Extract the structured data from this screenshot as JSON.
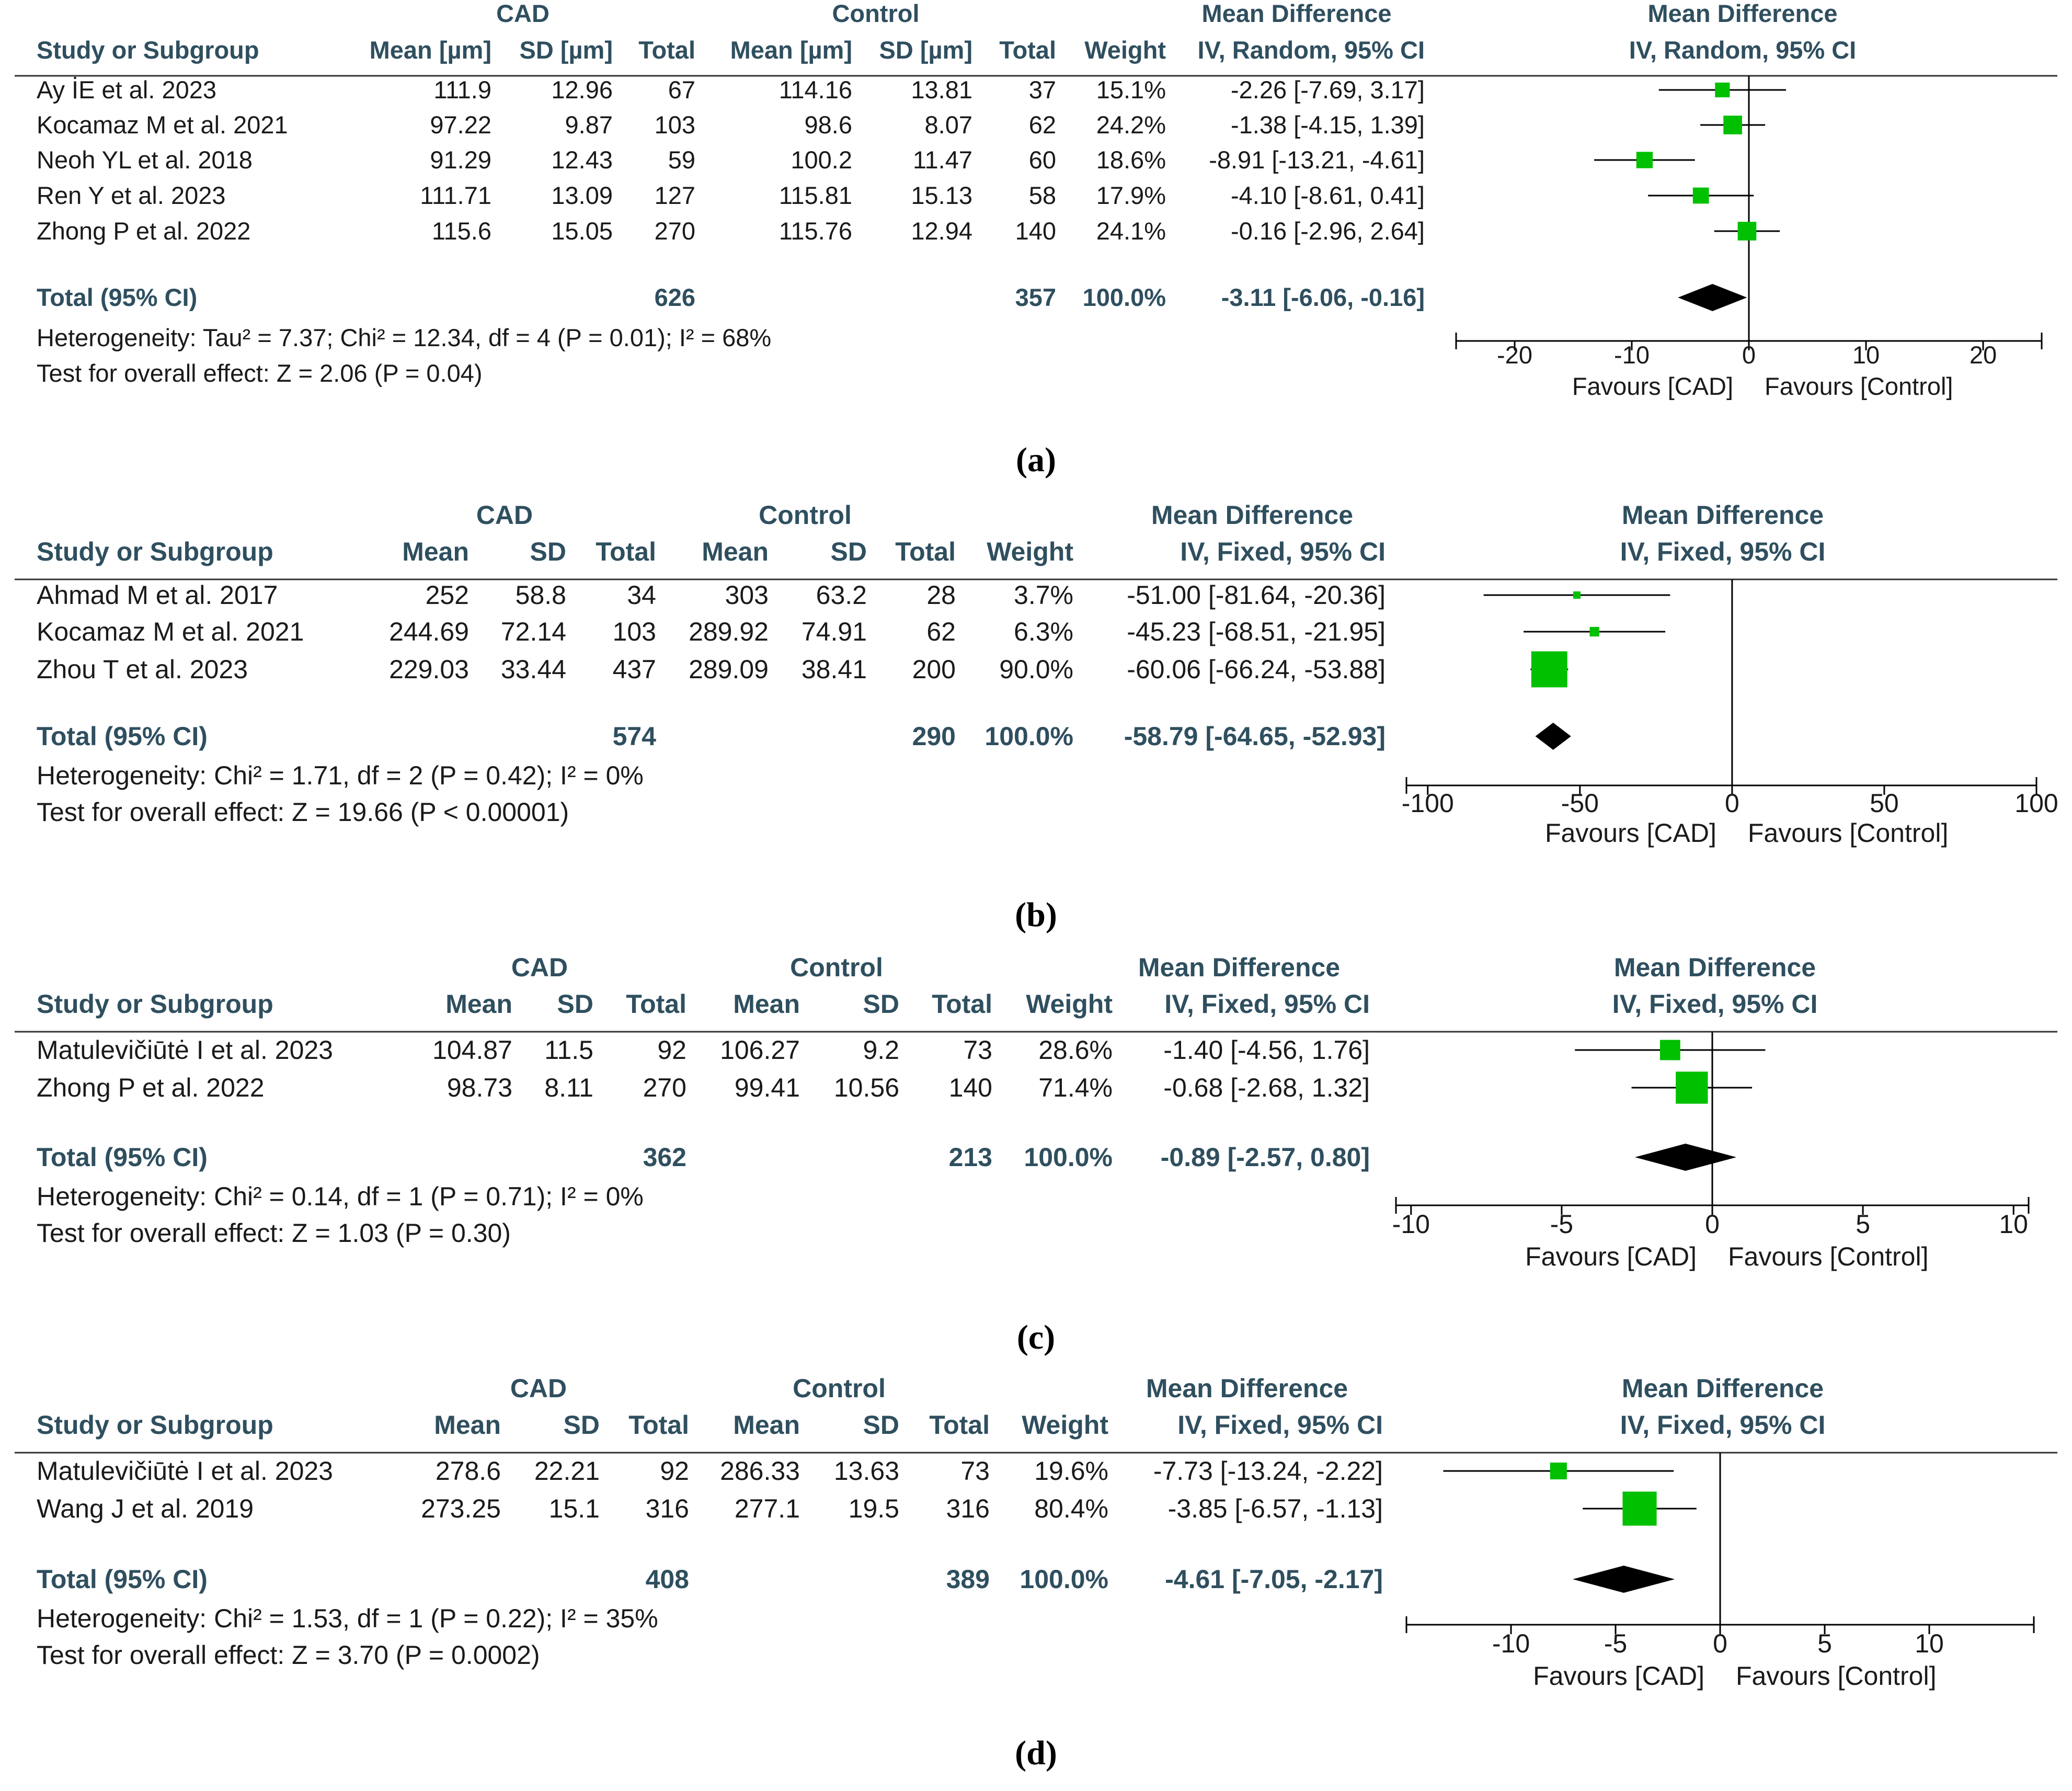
{
  "chart_data": [
    {
      "type": "forest",
      "panel_label": "a",
      "group1": "CAD",
      "group2": "Control",
      "headers": {
        "study": "Study or Subgroup",
        "mean1": "Mean [µm]",
        "sd1": "SD [µm]",
        "total1": "Total",
        "mean2": "Mean [µm]",
        "sd2": "SD [µm]",
        "total2": "Total",
        "weight": "Weight",
        "md_title": "Mean Difference",
        "md_method": "IV, Random, 95% CI",
        "plot_title": "Mean Difference",
        "plot_method": "IV, Random, 95% CI"
      },
      "studies": [
        {
          "study": "Ay İE  et al. 2023",
          "mean1": "111.9",
          "sd1": "12.96",
          "total1": "67",
          "mean2": "114.16",
          "sd2": "13.81",
          "total2": "37",
          "weight": "15.1%",
          "ci_text": "-2.26 [-7.69, 3.17]",
          "md": -2.26,
          "lo": -7.69,
          "hi": 3.17,
          "w": 15.1
        },
        {
          "study": "Kocamaz M  et al. 2021",
          "mean1": "97.22",
          "sd1": "9.87",
          "total1": "103",
          "mean2": "98.6",
          "sd2": "8.07",
          "total2": "62",
          "weight": "24.2%",
          "ci_text": "-1.38 [-4.15, 1.39]",
          "md": -1.38,
          "lo": -4.15,
          "hi": 1.39,
          "w": 24.2
        },
        {
          "study": "Neoh YL  et al. 2018",
          "mean1": "91.29",
          "sd1": "12.43",
          "total1": "59",
          "mean2": "100.2",
          "sd2": "11.47",
          "total2": "60",
          "weight": "18.6%",
          "ci_text": "-8.91 [-13.21, -4.61]",
          "md": -8.91,
          "lo": -13.21,
          "hi": -4.61,
          "w": 18.6
        },
        {
          "study": "Ren Y  et al. 2023",
          "mean1": "111.71",
          "sd1": "13.09",
          "total1": "127",
          "mean2": "115.81",
          "sd2": "15.13",
          "total2": "58",
          "weight": "17.9%",
          "ci_text": "-4.10 [-8.61, 0.41]",
          "md": -4.1,
          "lo": -8.61,
          "hi": 0.41,
          "w": 17.9
        },
        {
          "study": "Zhong P  et al. 2022",
          "mean1": "115.6",
          "sd1": "15.05",
          "total1": "270",
          "mean2": "115.76",
          "sd2": "12.94",
          "total2": "140",
          "weight": "24.1%",
          "ci_text": "-0.16 [-2.96, 2.64]",
          "md": -0.16,
          "lo": -2.96,
          "hi": 2.64,
          "w": 24.1
        }
      ],
      "total": {
        "label": "Total (95% CI)",
        "total1": "626",
        "total2": "357",
        "weight": "100.0%",
        "ci_text": "-3.11 [-6.06, -0.16]",
        "md": -3.11,
        "lo": -6.06,
        "hi": -0.16
      },
      "heterogeneity": "Heterogeneity: Tau² = 7.37; Chi² = 12.34, df = 4 (P = 0.01); I² = 68%",
      "overall_effect": "Test for overall effect: Z = 2.06 (P = 0.04)",
      "xlim": [
        -25,
        25
      ],
      "ticks": [
        -20,
        -10,
        0,
        10,
        20
      ],
      "tick_labels": [
        "-20",
        "-10",
        "0",
        "10",
        "20"
      ],
      "favours_left": "Favours [CAD]",
      "favours_right": "Favours [Control]",
      "marker_color": "#00c000",
      "diamond_color": "#000000"
    },
    {
      "type": "forest",
      "panel_label": "b",
      "group1": "CAD",
      "group2": "Control",
      "headers": {
        "study": "Study or Subgroup",
        "mean1": "Mean",
        "sd1": "SD",
        "total1": "Total",
        "mean2": "Mean",
        "sd2": "SD",
        "total2": "Total",
        "weight": "Weight",
        "md_title": "Mean Difference",
        "md_method": "IV, Fixed, 95% CI",
        "plot_title": "Mean Difference",
        "plot_method": "IV, Fixed, 95% CI"
      },
      "studies": [
        {
          "study": "Ahmad M  et al. 2017",
          "mean1": "252",
          "sd1": "58.8",
          "total1": "34",
          "mean2": "303",
          "sd2": "63.2",
          "total2": "28",
          "weight": "3.7%",
          "ci_text": "-51.00 [-81.64, -20.36]",
          "md": -51.0,
          "lo": -81.64,
          "hi": -20.36,
          "w": 3.7
        },
        {
          "study": "Kocamaz M  et al. 2021",
          "mean1": "244.69",
          "sd1": "72.14",
          "total1": "103",
          "mean2": "289.92",
          "sd2": "74.91",
          "total2": "62",
          "weight": "6.3%",
          "ci_text": "-45.23 [-68.51, -21.95]",
          "md": -45.23,
          "lo": -68.51,
          "hi": -21.95,
          "w": 6.3
        },
        {
          "study": "Zhou T et al. 2023",
          "mean1": "229.03",
          "sd1": "33.44",
          "total1": "437",
          "mean2": "289.09",
          "sd2": "38.41",
          "total2": "200",
          "weight": "90.0%",
          "ci_text": "-60.06 [-66.24, -53.88]",
          "md": -60.06,
          "lo": -66.24,
          "hi": -53.88,
          "w": 90.0
        }
      ],
      "total": {
        "label": "Total (95% CI)",
        "total1": "574",
        "total2": "290",
        "weight": "100.0%",
        "ci_text": "-58.79 [-64.65, -52.93]",
        "md": -58.79,
        "lo": -64.65,
        "hi": -52.93
      },
      "heterogeneity": "Heterogeneity: Chi² = 1.71, df = 2 (P = 0.42); I² = 0%",
      "overall_effect": "Test for overall effect: Z = 19.66 (P < 0.00001)",
      "xlim": [
        -100,
        100
      ],
      "ticks": [
        -100,
        -50,
        0,
        50,
        100
      ],
      "tick_labels": [
        "-100",
        "-50",
        "0",
        "50",
        "100"
      ],
      "favours_left": "Favours [CAD]",
      "favours_right": "Favours [Control]",
      "marker_color": "#00c000",
      "diamond_color": "#000000"
    },
    {
      "type": "forest",
      "panel_label": "c",
      "group1": "CAD",
      "group2": "Control",
      "headers": {
        "study": "Study or Subgroup",
        "mean1": "Mean",
        "sd1": "SD",
        "total1": "Total",
        "mean2": "Mean",
        "sd2": "SD",
        "total2": "Total",
        "weight": "Weight",
        "md_title": "Mean Difference",
        "md_method": "IV, Fixed, 95% CI",
        "plot_title": "Mean Difference",
        "plot_method": "IV, Fixed, 95% CI"
      },
      "studies": [
        {
          "study": "Matulevičiūtė I et al. 2023",
          "mean1": "104.87",
          "sd1": "11.5",
          "total1": "92",
          "mean2": "106.27",
          "sd2": "9.2",
          "total2": "73",
          "weight": "28.6%",
          "ci_text": "-1.40 [-4.56, 1.76]",
          "md": -1.4,
          "lo": -4.56,
          "hi": 1.76,
          "w": 28.6
        },
        {
          "study": "Zhong P  et al. 2022",
          "mean1": "98.73",
          "sd1": "8.11",
          "total1": "270",
          "mean2": "99.41",
          "sd2": "10.56",
          "total2": "140",
          "weight": "71.4%",
          "ci_text": "-0.68 [-2.68, 1.32]",
          "md": -0.68,
          "lo": -2.68,
          "hi": 1.32,
          "w": 71.4
        }
      ],
      "total": {
        "label": "Total (95% CI)",
        "total1": "362",
        "total2": "213",
        "weight": "100.0%",
        "ci_text": "-0.89 [-2.57, 0.80]",
        "md": -0.89,
        "lo": -2.57,
        "hi": 0.8
      },
      "heterogeneity": "Heterogeneity: Chi² = 0.14, df = 1 (P = 0.71); I² = 0%",
      "overall_effect": "Test for overall effect: Z = 1.03 (P = 0.30)",
      "xlim": [
        -10,
        10
      ],
      "ticks": [
        -10,
        -5,
        0,
        5,
        10
      ],
      "tick_labels": [
        "-10",
        "-5",
        "0",
        "5",
        "10"
      ],
      "favours_left": "Favours [CAD]",
      "favours_right": "Favours [Control]",
      "marker_color": "#00c000",
      "diamond_color": "#000000"
    },
    {
      "type": "forest",
      "panel_label": "d",
      "group1": "CAD",
      "group2": "Control",
      "headers": {
        "study": "Study or Subgroup",
        "mean1": "Mean",
        "sd1": "SD",
        "total1": "Total",
        "mean2": "Mean",
        "sd2": "SD",
        "total2": "Total",
        "weight": "Weight",
        "md_title": "Mean Difference",
        "md_method": "IV, Fixed, 95% CI",
        "plot_title": "Mean Difference",
        "plot_method": "IV, Fixed, 95% CI"
      },
      "studies": [
        {
          "study": "Matulevičiūtė I et al. 2023",
          "mean1": "278.6",
          "sd1": "22.21",
          "total1": "92",
          "mean2": "286.33",
          "sd2": "13.63",
          "total2": "73",
          "weight": "19.6%",
          "ci_text": "-7.73 [-13.24, -2.22]",
          "md": -7.73,
          "lo": -13.24,
          "hi": -2.22,
          "w": 19.6
        },
        {
          "study": "Wang J  et al. 2019",
          "mean1": "273.25",
          "sd1": "15.1",
          "total1": "316",
          "mean2": "277.1",
          "sd2": "19.5",
          "total2": "316",
          "weight": "80.4%",
          "ci_text": "-3.85 [-6.57, -1.13]",
          "md": -3.85,
          "lo": -6.57,
          "hi": -1.13,
          "w": 80.4
        }
      ],
      "total": {
        "label": "Total (95% CI)",
        "total1": "408",
        "total2": "389",
        "weight": "100.0%",
        "ci_text": "-4.61 [-7.05, -2.17]",
        "md": -4.61,
        "lo": -7.05,
        "hi": -2.17
      },
      "heterogeneity": "Heterogeneity: Chi² = 1.53, df = 1 (P = 0.22); I² = 35%",
      "overall_effect": "Test for overall effect: Z = 3.70 (P = 0.0002)",
      "xlim": [
        -15,
        15
      ],
      "ticks": [
        -10,
        -5,
        0,
        5,
        10
      ],
      "tick_labels": [
        "-10",
        "-5",
        "0",
        "5",
        "10"
      ],
      "favours_left": "Favours [CAD]",
      "favours_right": "Favours [Control]",
      "marker_color": "#00c000",
      "diamond_color": "#000000"
    }
  ],
  "captions": [
    "(a)",
    "(b)",
    "(c)",
    "(d)"
  ]
}
